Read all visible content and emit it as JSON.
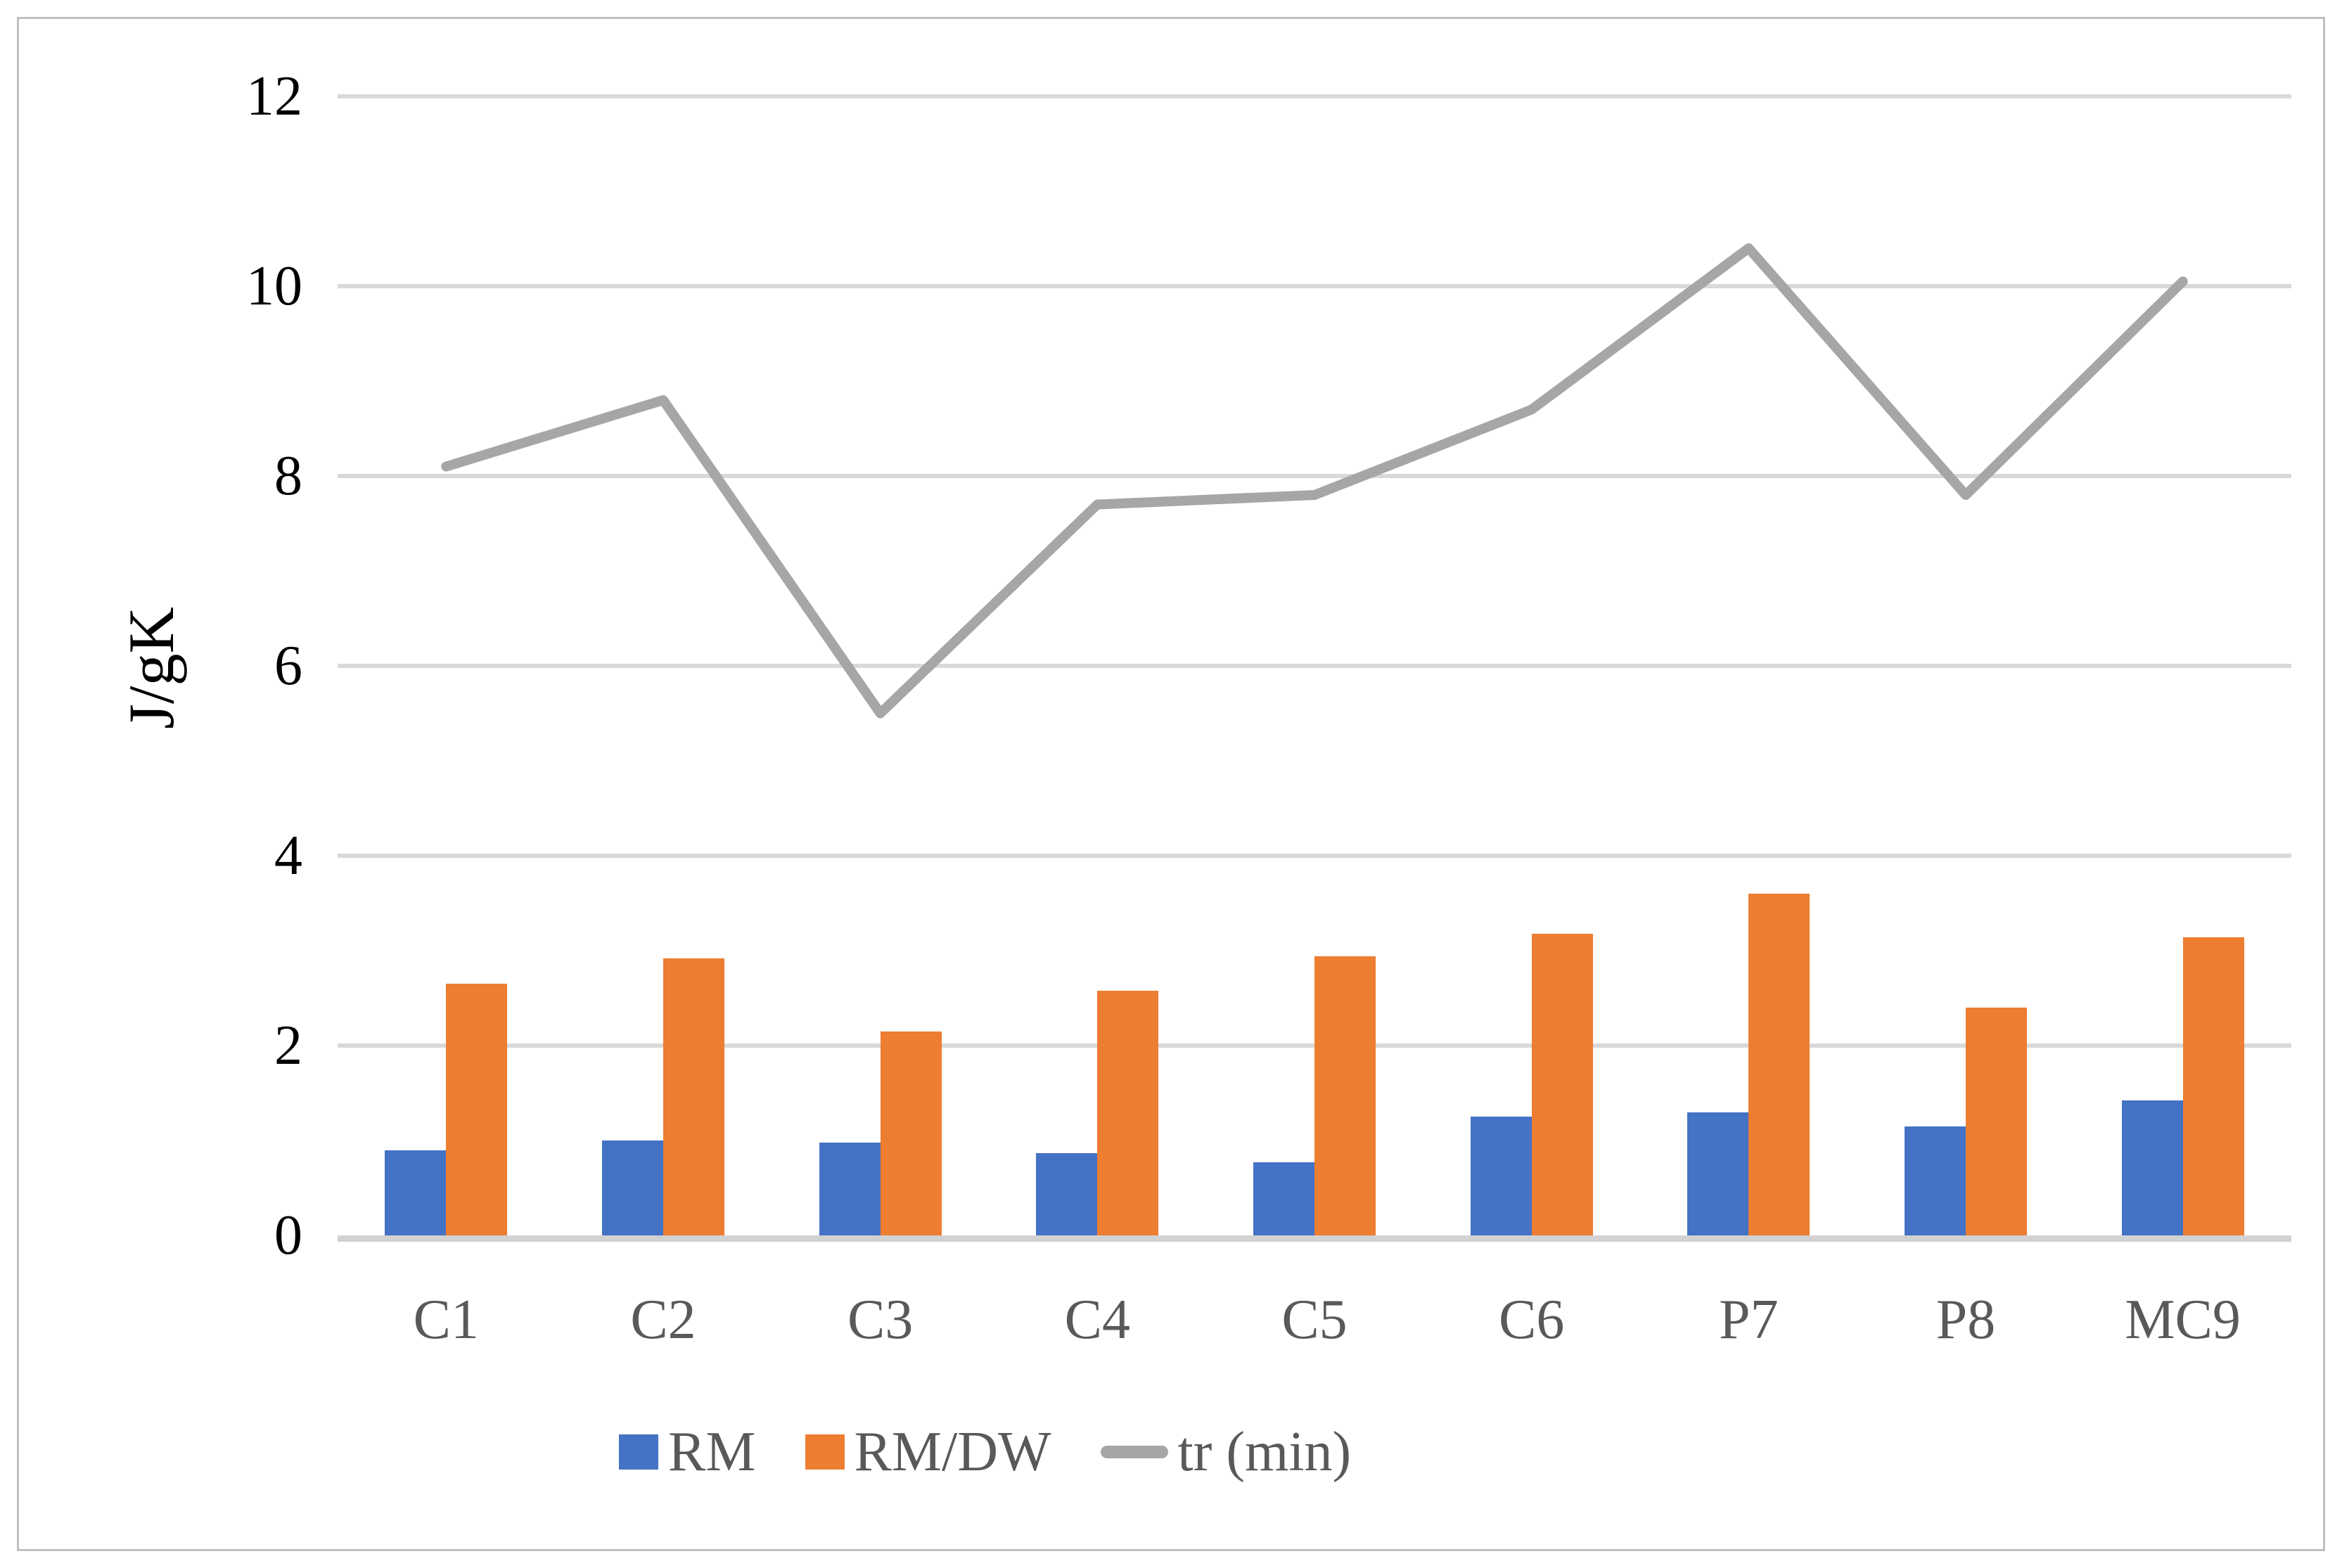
{
  "chart_data": {
    "type": "combo_bar_line",
    "categories": [
      "C1",
      "C2",
      "C3",
      "C4",
      "C5",
      "C6",
      "P7",
      "P8",
      "MC9"
    ],
    "series": [
      {
        "name": "RM",
        "type": "bar",
        "color": "#4472C4",
        "values": [
          0.9,
          1.0,
          0.98,
          0.87,
          0.77,
          1.25,
          1.3,
          1.15,
          1.42
        ]
      },
      {
        "name": "RM/DW",
        "type": "bar",
        "color": "#ED7D31",
        "values": [
          2.65,
          2.92,
          2.15,
          2.58,
          2.94,
          3.18,
          3.6,
          2.4,
          3.14
        ]
      },
      {
        "name": "tr (min)",
        "type": "line",
        "color": "#A6A6A6",
        "values": [
          8.1,
          8.8,
          5.5,
          7.7,
          7.8,
          8.7,
          10.4,
          7.8,
          10.05
        ]
      }
    ],
    "title": "",
    "xlabel": "",
    "ylabel": "J/gK",
    "ylim": [
      0,
      12
    ],
    "yticks": [
      0,
      2,
      4,
      6,
      8,
      10,
      12
    ],
    "grid": true,
    "legend_position": "bottom",
    "colors": {
      "gridline": "#D9D9D9",
      "axis_line": "#D2D2D2",
      "y_tick_label": "#000000",
      "x_tick_label": "#595959",
      "legend_text": "#595959",
      "chart_border": "#BFBFBF",
      "background": "#FFFFFF"
    }
  },
  "legend": {
    "items": [
      {
        "label": "RM",
        "marker": "bar-swatch",
        "color": "#4472C4"
      },
      {
        "label": "RM/DW",
        "marker": "bar-swatch",
        "color": "#ED7D31"
      },
      {
        "label": "tr (min)",
        "marker": "line-swatch",
        "color": "#A6A6A6"
      }
    ]
  }
}
